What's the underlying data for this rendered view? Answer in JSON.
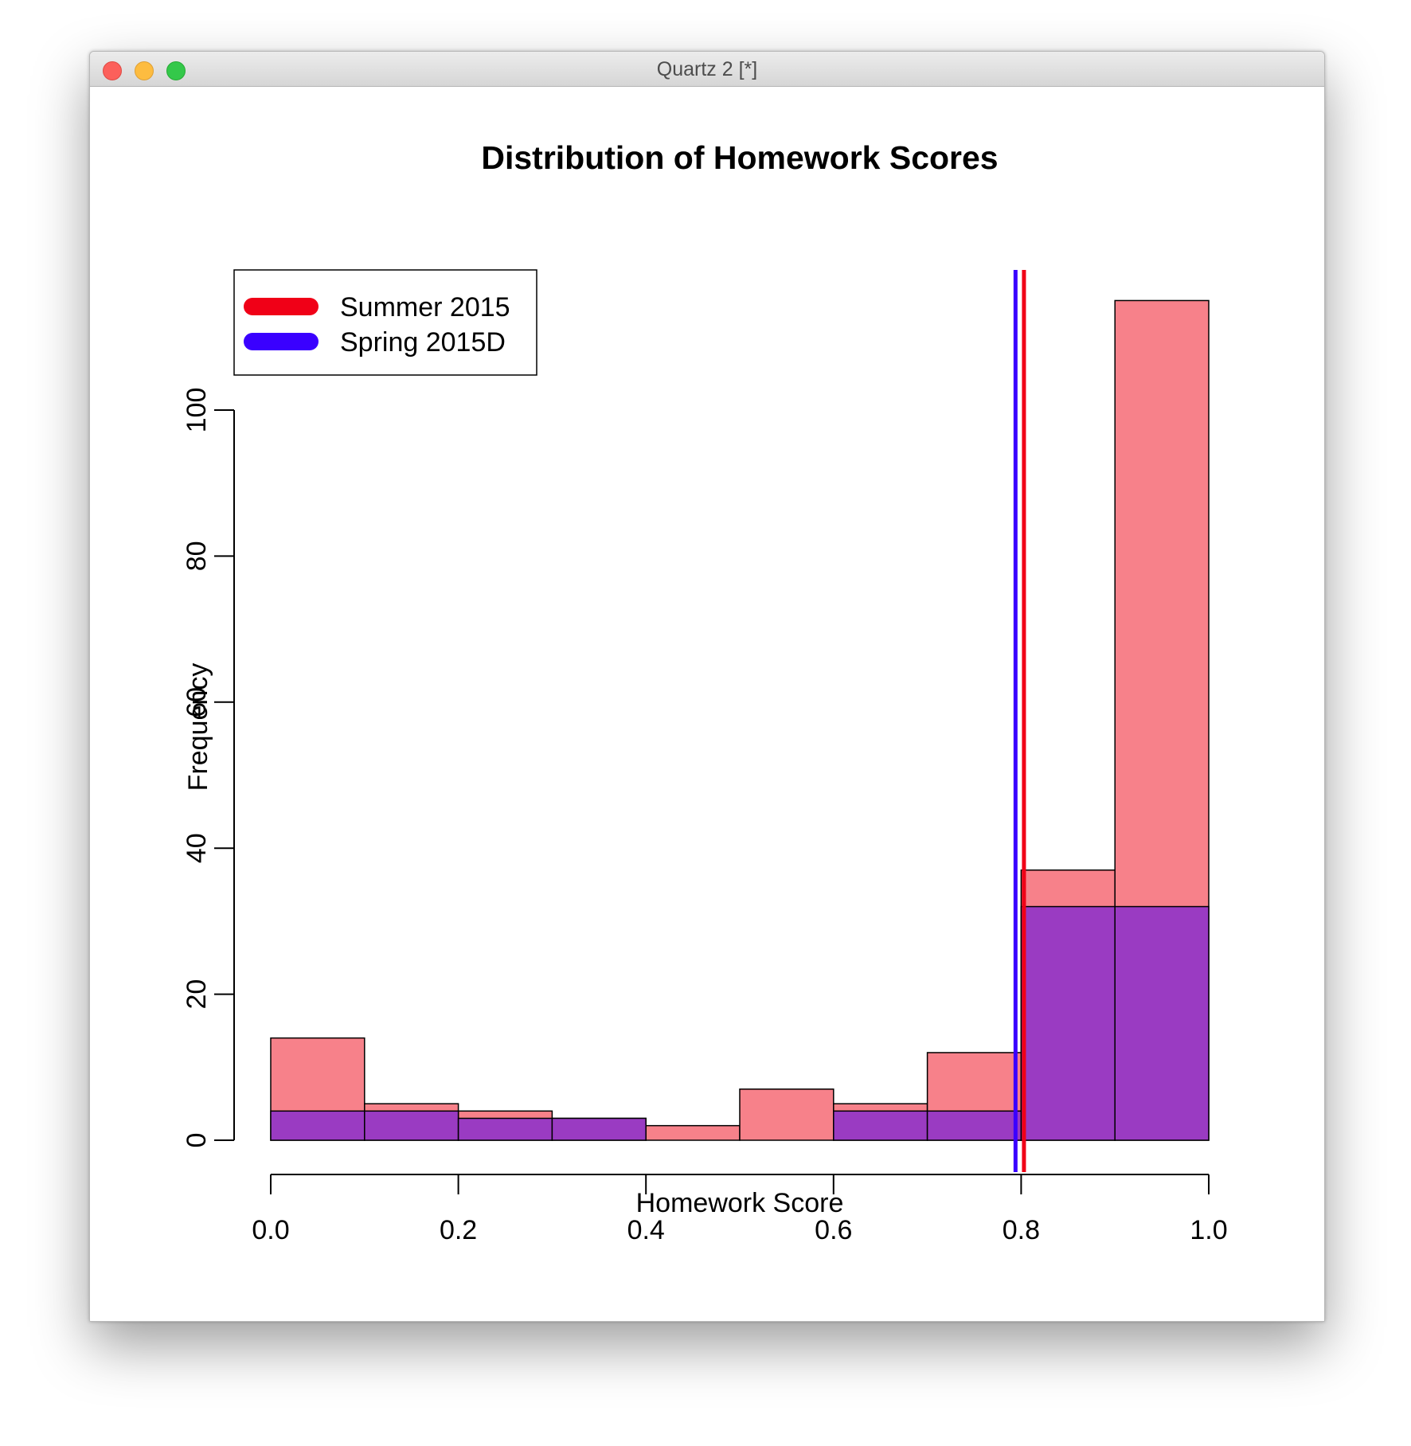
{
  "window": {
    "title": "Quartz 2 [*]"
  },
  "colors": {
    "summer_fill": "#f7818a",
    "spring_fill": "#9a3bc2",
    "summer_line": "#f00017",
    "spring_line": "#3a00ff"
  },
  "chart_data": {
    "type": "bar",
    "title": "Distribution of Homework Scores",
    "xlabel": "Homework Score",
    "ylabel": "Frequency",
    "xlim": [
      0.0,
      1.0
    ],
    "ylim": [
      0,
      115
    ],
    "x_ticks": [
      "0.0",
      "0.2",
      "0.4",
      "0.6",
      "0.8",
      "1.0"
    ],
    "y_ticks": [
      "0",
      "20",
      "40",
      "60",
      "80",
      "100"
    ],
    "bin_edges": [
      0.0,
      0.1,
      0.2,
      0.3,
      0.4,
      0.5,
      0.6,
      0.7,
      0.8,
      0.9,
      1.0
    ],
    "series": [
      {
        "name": "Summer 2015",
        "values": [
          14,
          5,
          4,
          3,
          2,
          7,
          5,
          12,
          37,
          115
        ]
      },
      {
        "name": "Spring 2015D",
        "values": [
          4,
          4,
          3,
          3,
          0,
          0,
          4,
          4,
          32,
          32
        ]
      }
    ],
    "mean_lines": [
      {
        "series": "Summer 2015",
        "x": 0.803
      },
      {
        "series": "Spring 2015D",
        "x": 0.794
      }
    ],
    "legend": {
      "position": "top-left",
      "entries": [
        "Summer 2015",
        "Spring 2015D"
      ]
    },
    "grid": false
  }
}
